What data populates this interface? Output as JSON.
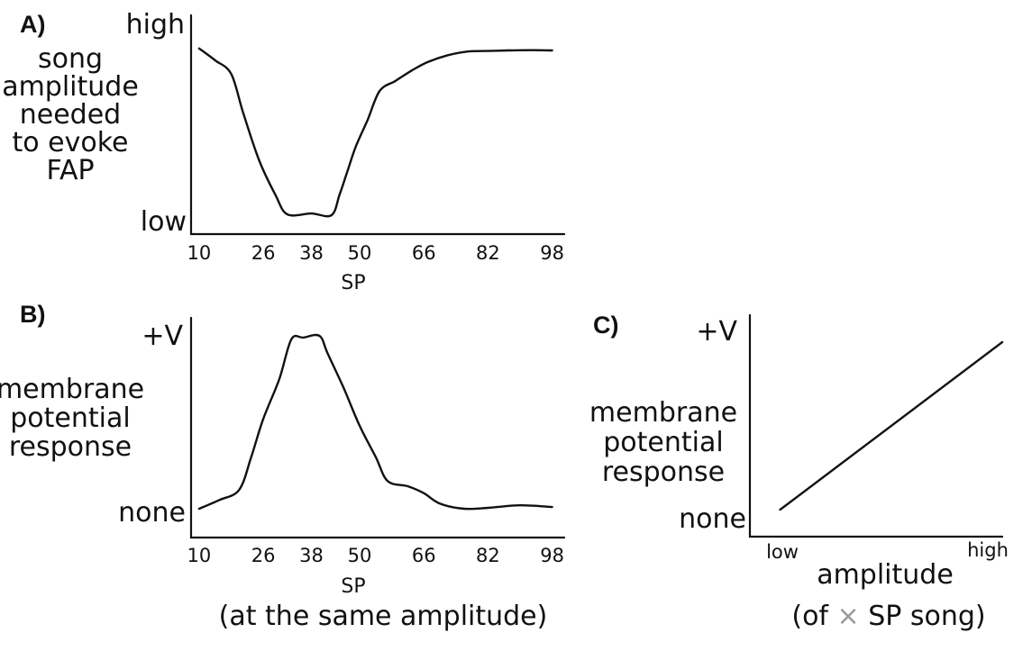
{
  "chart_data": [
    {
      "panel": "A)",
      "type": "line",
      "ylabel_lines": [
        "song",
        "amplitude",
        "needed",
        "to evoke",
        "FAP"
      ],
      "y_axis_labels": {
        "top": "high",
        "bottom": "low"
      },
      "xlabel": "SP",
      "x_ticks": [
        "10",
        "26",
        "38",
        "50",
        "66",
        "82",
        "98"
      ],
      "xlim": [
        8,
        101
      ],
      "ylim": [
        0,
        1
      ],
      "series": [
        {
          "x": [
            10,
            14,
            18,
            21,
            25,
            29,
            32,
            38,
            43,
            45,
            47,
            49,
            52,
            55,
            59,
            63,
            67,
            72,
            77,
            82,
            87,
            93,
            98
          ],
          "y": [
            0.98,
            0.91,
            0.83,
            0.6,
            0.32,
            0.12,
            0.005,
            0.01,
            0.0,
            0.12,
            0.26,
            0.4,
            0.56,
            0.73,
            0.79,
            0.85,
            0.9,
            0.94,
            0.962,
            0.965,
            0.968,
            0.97,
            0.968
          ]
        }
      ]
    },
    {
      "panel": "B)",
      "type": "line",
      "ylabel_lines": [
        "membrane",
        "potential",
        "response"
      ],
      "y_axis_labels": {
        "top": "+V",
        "bottom": "none"
      },
      "xlabel": "SP",
      "subtitle": "(at the same amplitude)",
      "x_ticks": [
        "10",
        "26",
        "38",
        "50",
        "66",
        "82",
        "98"
      ],
      "xlim": [
        8,
        101
      ],
      "ylim": [
        0,
        1
      ],
      "series": [
        {
          "x": [
            10,
            15,
            20,
            23,
            26,
            30,
            33,
            36,
            40,
            42,
            46,
            50,
            54,
            57,
            62,
            66,
            70,
            76,
            82,
            90,
            98
          ],
          "y": [
            0.0,
            0.05,
            0.11,
            0.3,
            0.52,
            0.75,
            0.98,
            0.99,
            1.0,
            0.9,
            0.7,
            0.48,
            0.3,
            0.16,
            0.13,
            0.09,
            0.03,
            0.0,
            0.005,
            0.02,
            0.01
          ]
        }
      ]
    },
    {
      "panel": "C)",
      "type": "line",
      "ylabel_lines": [
        "membrane",
        "potential",
        "response"
      ],
      "y_axis_labels": {
        "top": "+V",
        "bottom": "none"
      },
      "x_axis_labels": {
        "left": "low",
        "right": "high"
      },
      "xlabel": "amplitude",
      "subtitle_parts": [
        "(of ",
        "×",
        " SP song)"
      ],
      "xlim": [
        0,
        1
      ],
      "ylim": [
        0,
        1
      ],
      "series": [
        {
          "x": [
            0.12,
            1.0
          ],
          "y": [
            0.0,
            1.0
          ]
        }
      ]
    }
  ],
  "colors": {
    "ink": "#111111",
    "muted": "#9a9a9a",
    "background": "#ffffff"
  }
}
